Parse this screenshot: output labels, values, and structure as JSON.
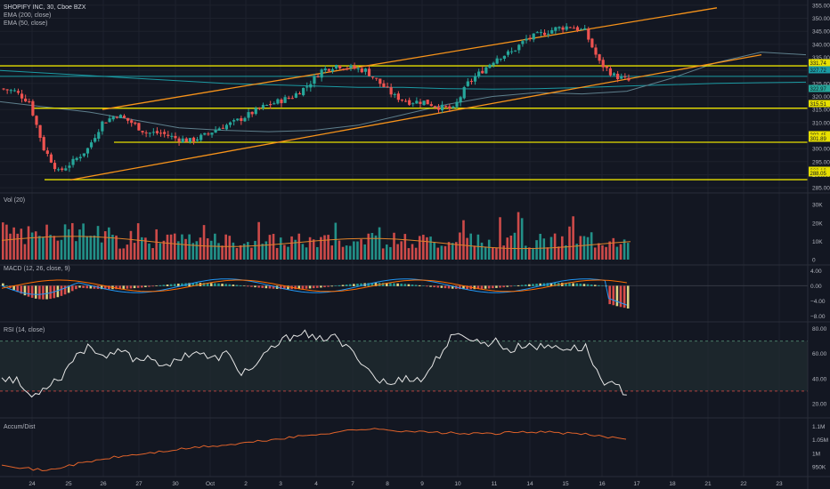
{
  "header": {
    "title": "SHOPIFY INC, 30, Cboe BZX",
    "ema200_label": "EMA (200, close)",
    "ema50_label": "EMA (50, close)"
  },
  "pane_labels": {
    "vol": "Vol (20)",
    "macd": "MACD (12, 26, close, 9)",
    "rsi": "RSI (14, close)",
    "accum": "Accum/Dist"
  },
  "colors": {
    "background": "#131722",
    "grid": "#1e222d",
    "up": "#26a69a",
    "down": "#ef5350",
    "channel": "#f7931a",
    "hline": "#e8e000",
    "ema200": "#1b9aa3",
    "ema50": "#5e7f8c",
    "rsi": "#e6e6e6",
    "ad": "#e0622a",
    "text": "#b2b5be"
  },
  "chart_data": [
    {
      "type": "candlestick",
      "name": "price",
      "x_labels": [
        "24",
        "25",
        "26",
        "27",
        "30",
        "Oct",
        "2",
        "3",
        "4",
        "7",
        "8",
        "9",
        "10",
        "11",
        "14",
        "15",
        "16",
        "17",
        "18",
        "21",
        "22",
        "23"
      ],
      "y_ticks": [
        285,
        290,
        295,
        300,
        305,
        310,
        315,
        320,
        325,
        330,
        335,
        340,
        345,
        350,
        355
      ],
      "ylim": [
        283,
        357
      ],
      "price_tags": [
        "331.74",
        "327.72",
        "322.97",
        "315.51",
        "302.45",
        "301.89",
        "288.19",
        "288.05"
      ],
      "key_points": [
        [
          0,
          323
        ],
        [
          1,
          322
        ],
        [
          2,
          318
        ],
        [
          3,
          300
        ],
        [
          4,
          291
        ],
        [
          5,
          295
        ],
        [
          6,
          300
        ],
        [
          7,
          310
        ],
        [
          8,
          313
        ],
        [
          9,
          310
        ],
        [
          10,
          306
        ],
        [
          11,
          306
        ],
        [
          12,
          304
        ],
        [
          13,
          303
        ],
        [
          14,
          305
        ],
        [
          15,
          308
        ],
        [
          16,
          310
        ],
        [
          17,
          313
        ],
        [
          18,
          316
        ],
        [
          19,
          318
        ],
        [
          20,
          320
        ],
        [
          21,
          324
        ],
        [
          22,
          330
        ],
        [
          23,
          332
        ],
        [
          24,
          331
        ],
        [
          25,
          330
        ],
        [
          26,
          325
        ],
        [
          27,
          320
        ],
        [
          28,
          318
        ],
        [
          29,
          318
        ],
        [
          30,
          316
        ],
        [
          31,
          315
        ],
        [
          32,
          325
        ],
        [
          33,
          330
        ],
        [
          34,
          335
        ],
        [
          35,
          337
        ],
        [
          36,
          342
        ],
        [
          37,
          344
        ],
        [
          38,
          346
        ],
        [
          39,
          347
        ],
        [
          40,
          345
        ],
        [
          41,
          333
        ],
        [
          42,
          328
        ],
        [
          43,
          326
        ]
      ],
      "trend_channel": {
        "upper": [
          [
            25.3,
            315
          ],
          [
            35.5,
            354
          ]
        ],
        "lower": [
          [
            25.3,
            288
          ],
          [
            36.5,
            336
          ]
        ]
      },
      "horizontal_levels": [
        331.74,
        327.72,
        315.51,
        302.45,
        288.1
      ],
      "ema200": [
        330,
        329,
        328,
        327,
        326,
        325,
        324.5,
        324,
        323.5,
        323.5,
        323,
        322.8,
        323,
        323.4,
        324,
        324.5,
        325,
        325.3,
        325.5
      ],
      "ema50": [
        318,
        316,
        314,
        311,
        308,
        307,
        306.5,
        307,
        309,
        313,
        317,
        320,
        321.5,
        321,
        322,
        327,
        333,
        337,
        336
      ]
    },
    {
      "type": "bar",
      "name": "volume",
      "y_ticks": [
        "0",
        "10K",
        "20K",
        "30K"
      ],
      "ylim": [
        0,
        34000
      ]
    },
    {
      "type": "histogram",
      "name": "macd",
      "y_ticks": [
        "-8.00",
        "-4.00",
        "0.00",
        "4.00"
      ],
      "ylim": [
        -9,
        5
      ]
    },
    {
      "type": "line",
      "name": "rsi",
      "y_ticks": [
        "20.00",
        "40.00",
        "60.00",
        "80.00"
      ],
      "ylim": [
        10,
        84
      ],
      "band": [
        30,
        70
      ],
      "key_points": [
        [
          0,
          42
        ],
        [
          1,
          38
        ],
        [
          2,
          25
        ],
        [
          3,
          35
        ],
        [
          4,
          42
        ],
        [
          5,
          60
        ],
        [
          6,
          66
        ],
        [
          7,
          56
        ],
        [
          8,
          62
        ],
        [
          9,
          55
        ],
        [
          10,
          58
        ],
        [
          11,
          48
        ],
        [
          12,
          58
        ],
        [
          13,
          62
        ],
        [
          14,
          55
        ],
        [
          15,
          60
        ],
        [
          16,
          45
        ],
        [
          17,
          50
        ],
        [
          18,
          64
        ],
        [
          19,
          72
        ],
        [
          20,
          78
        ],
        [
          21,
          70
        ],
        [
          22,
          75
        ],
        [
          23,
          65
        ],
        [
          24,
          55
        ],
        [
          25,
          40
        ],
        [
          26,
          35
        ],
        [
          27,
          42
        ],
        [
          28,
          38
        ],
        [
          29,
          55
        ],
        [
          30,
          72
        ],
        [
          31,
          75
        ],
        [
          32,
          68
        ],
        [
          33,
          70
        ],
        [
          34,
          62
        ],
        [
          35,
          68
        ],
        [
          36,
          65
        ],
        [
          37,
          66
        ],
        [
          38,
          64
        ],
        [
          39,
          65
        ],
        [
          40,
          40
        ],
        [
          41,
          33
        ],
        [
          42,
          28
        ]
      ]
    },
    {
      "type": "line",
      "name": "accum_dist",
      "y_ticks": [
        "950K",
        "1M",
        "1.05M",
        "1.1M"
      ],
      "ylim": [
        920000,
        1125000
      ],
      "key_points": [
        [
          0,
          960000
        ],
        [
          1,
          945000
        ],
        [
          2,
          935000
        ],
        [
          3,
          955000
        ],
        [
          4,
          970000
        ],
        [
          5,
          985000
        ],
        [
          6,
          995000
        ],
        [
          7,
          1005000
        ],
        [
          8,
          1015000
        ],
        [
          9,
          1025000
        ],
        [
          10,
          1030000
        ],
        [
          11,
          1040000
        ],
        [
          12,
          1050000
        ],
        [
          13,
          1060000
        ],
        [
          14,
          1070000
        ],
        [
          15,
          1080000
        ],
        [
          16,
          1090000
        ],
        [
          17,
          1088000
        ],
        [
          18,
          1083000
        ],
        [
          19,
          1078000
        ],
        [
          20,
          1075000
        ],
        [
          21,
          1072000
        ],
        [
          22,
          1074000
        ],
        [
          23,
          1078000
        ],
        [
          24,
          1080000
        ],
        [
          25,
          1075000
        ],
        [
          26,
          1070000
        ],
        [
          27,
          1060000
        ],
        [
          28,
          1055000
        ]
      ]
    }
  ]
}
